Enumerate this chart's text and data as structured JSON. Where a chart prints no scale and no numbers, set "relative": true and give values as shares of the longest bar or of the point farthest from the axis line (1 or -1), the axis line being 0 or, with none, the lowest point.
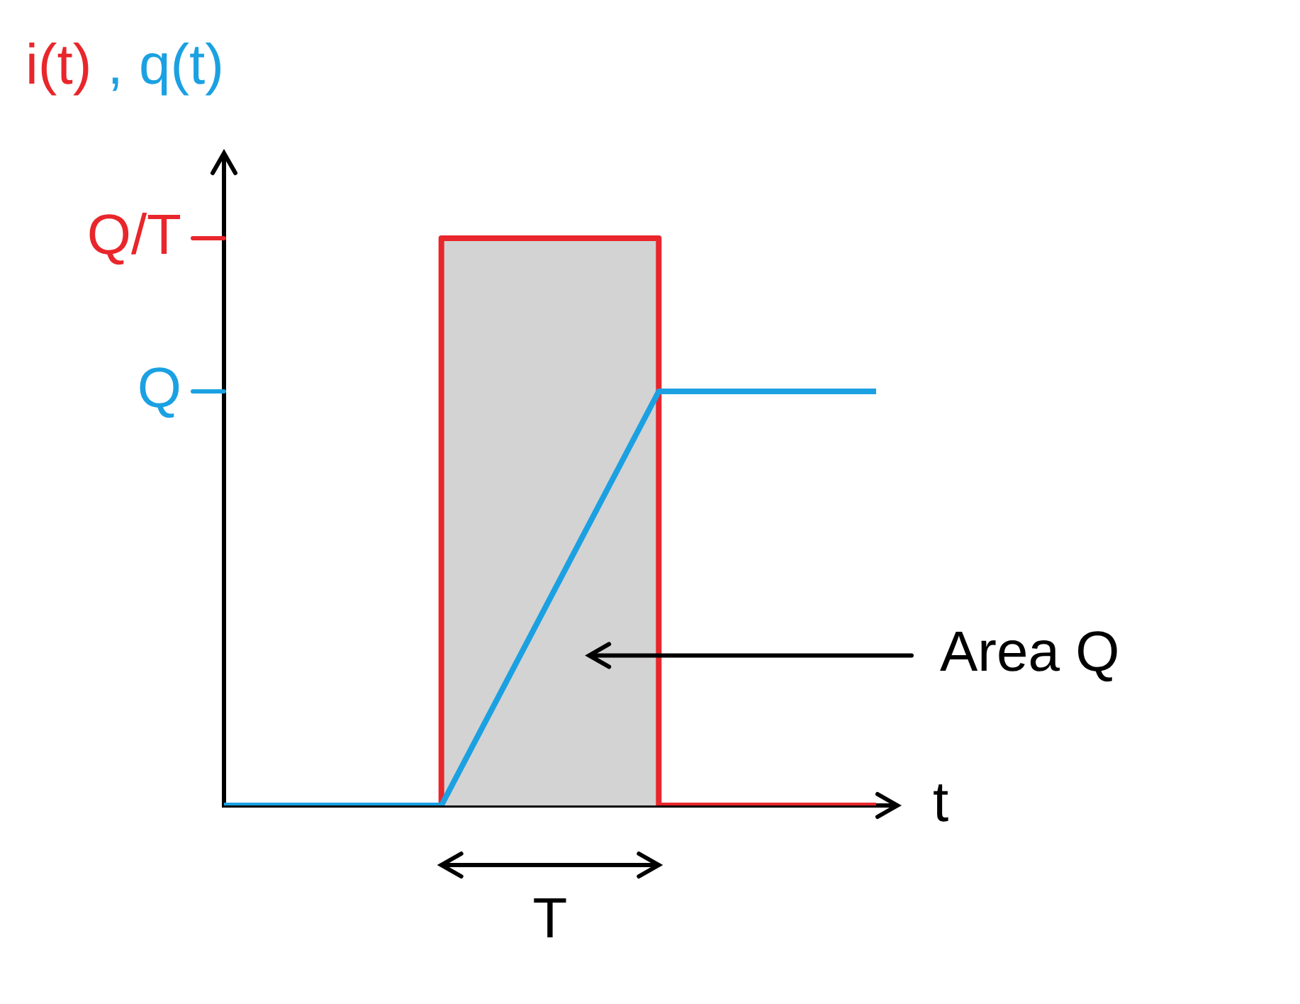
{
  "chart_data": {
    "type": "line",
    "relative": true,
    "ylabel": "i(t) , q(t)",
    "xlabel": "t",
    "categories": [
      null,
      null,
      null,
      null
    ],
    "tick_labels": false,
    "grid": false,
    "series": [
      {
        "type": "step",
        "color": "#e8262b",
        "values": [
          0,
          1,
          0,
          0
        ]
      },
      {
        "color": "#1ba1e2",
        "values": [
          0,
          0,
          0.73,
          0.73
        ]
      }
    ],
    "annotations": [
      "Q/T",
      "Q",
      "Area Q",
      "T"
    ]
  }
}
